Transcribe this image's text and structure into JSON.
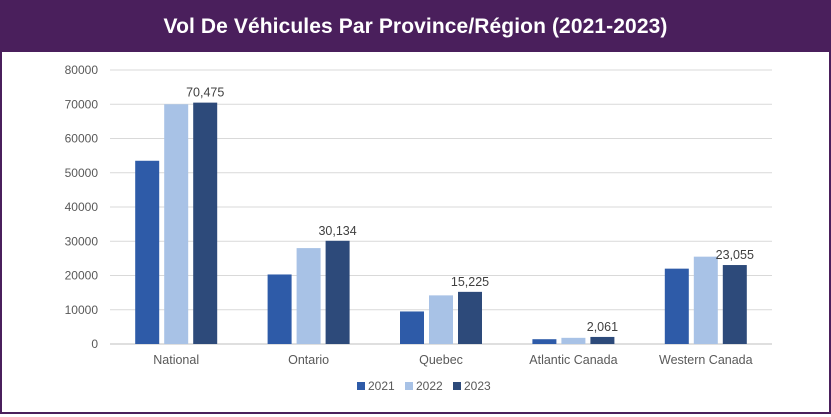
{
  "title": "Vol De Véhicules Par Province/Région (2021-2023)",
  "chart_data": {
    "type": "bar",
    "categories": [
      "National",
      "Ontario",
      "Quebec",
      "Atlantic Canada",
      "Western Canada"
    ],
    "series": [
      {
        "name": "2021",
        "color": "#2e5ba8",
        "values": [
          53500,
          20300,
          9500,
          1400,
          22000
        ]
      },
      {
        "name": "2022",
        "color": "#a8c2e6",
        "values": [
          70000,
          28000,
          14200,
          1800,
          25500
        ]
      },
      {
        "name": "2023",
        "color": "#2d4a7a",
        "values": [
          70475,
          30134,
          15225,
          2061,
          23055
        ]
      }
    ],
    "data_labels": {
      "series": "2023",
      "labels": [
        "70,475",
        "30,134",
        "15,225",
        "2,061",
        "23,055"
      ]
    },
    "y_ticks": [
      "0",
      "10000",
      "20000",
      "30000",
      "40000",
      "50000",
      "60000",
      "70000",
      "80000"
    ],
    "ylim": [
      0,
      80000
    ],
    "grid": true,
    "legend_position": "bottom"
  },
  "colors": {
    "header_bg": "#4a1f5c",
    "grid": "#d9d9d9",
    "axis": "#bfbfbf",
    "text": "#595959"
  }
}
